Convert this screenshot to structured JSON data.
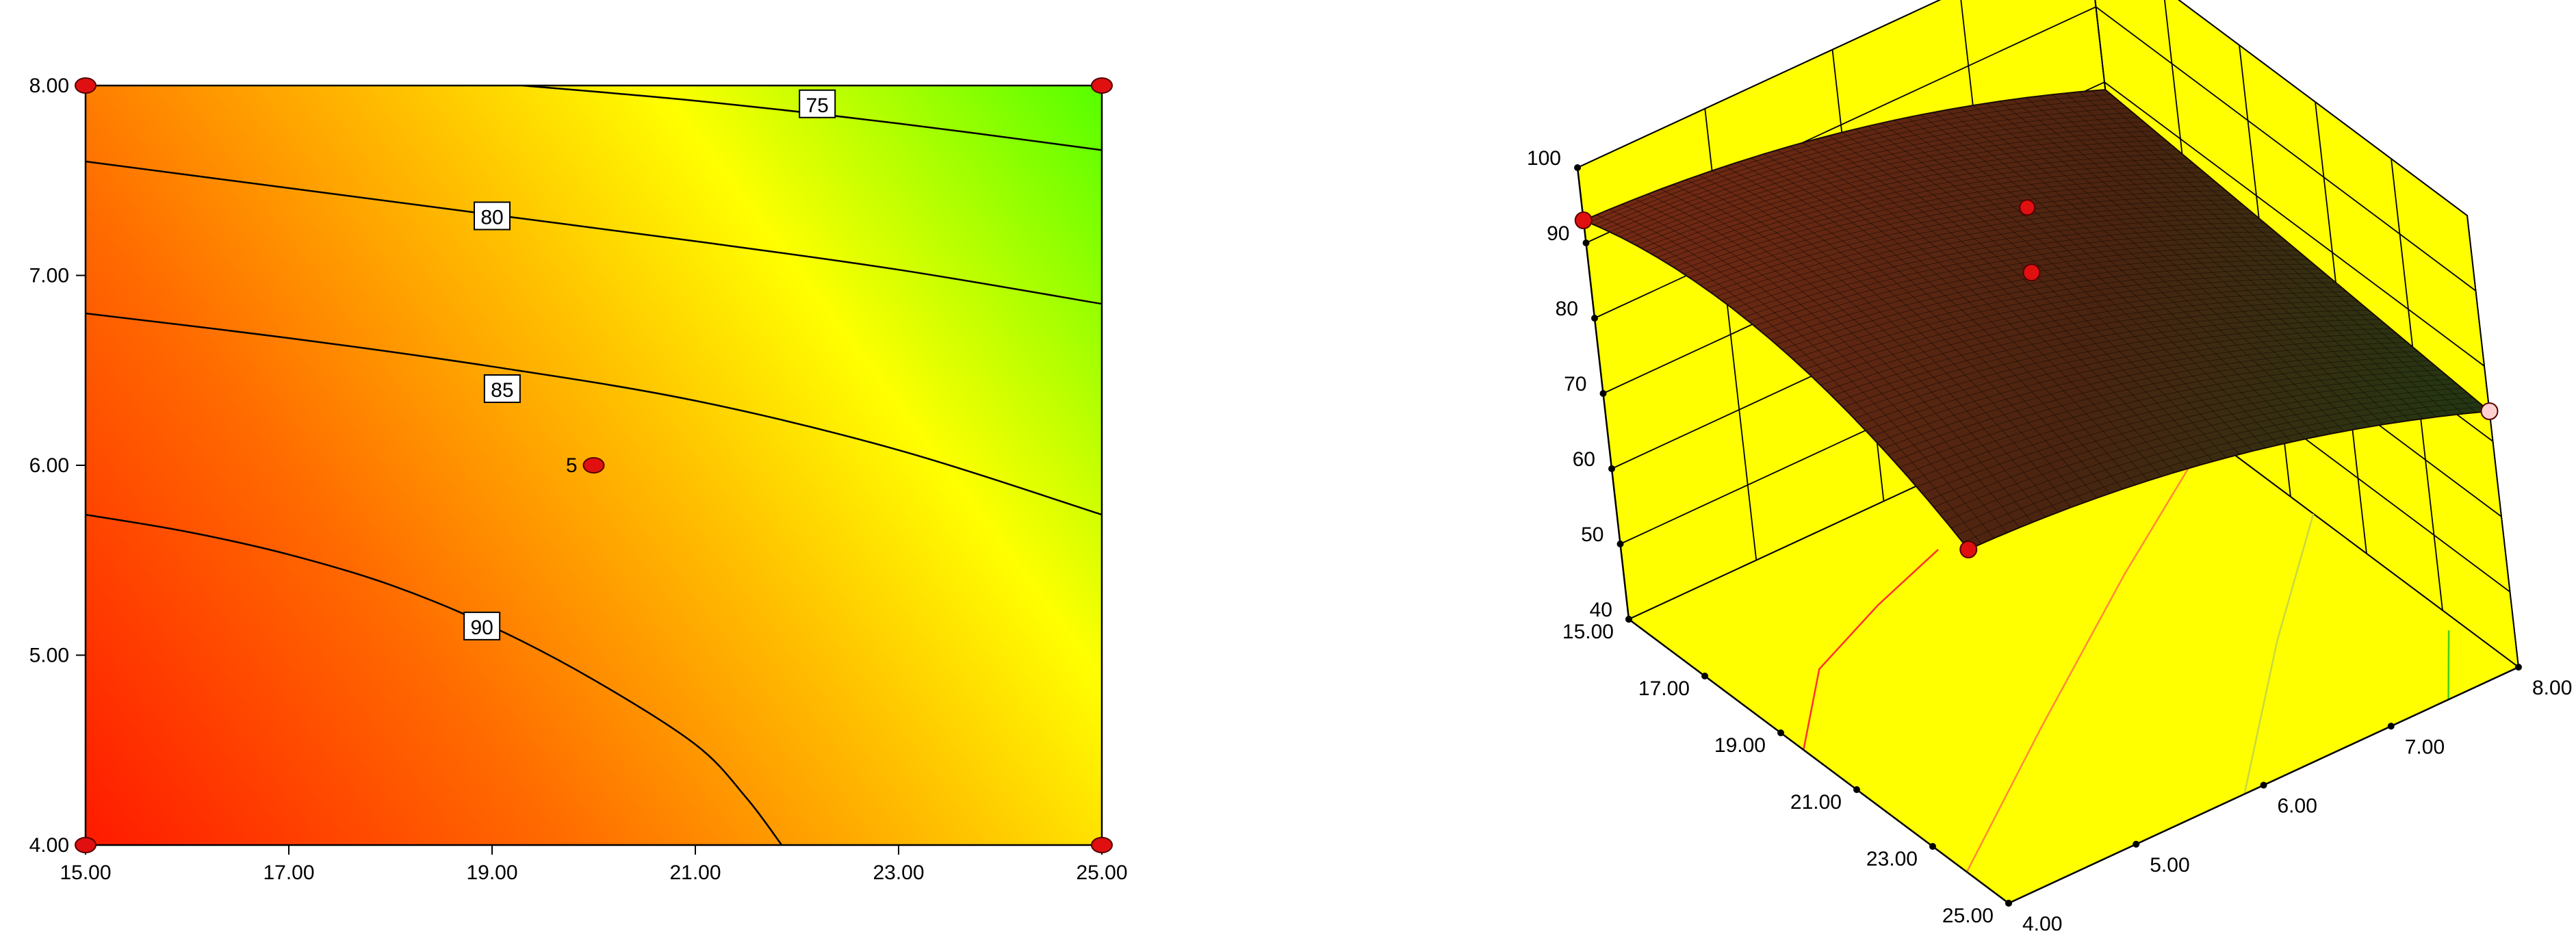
{
  "chart_data": [
    {
      "type": "contour",
      "xlabel": "",
      "ylabel": "",
      "xlim": [
        15.0,
        25.0
      ],
      "ylim": [
        4.0,
        8.0
      ],
      "x_ticks": [
        "15.00",
        "17.00",
        "19.00",
        "21.00",
        "23.00",
        "25.00"
      ],
      "y_ticks": [
        "4.00",
        "5.00",
        "6.00",
        "7.00",
        "8.00"
      ],
      "contours": [
        {
          "level": 75,
          "label": "75",
          "points": [
            [
              19.3,
              8.0
            ],
            [
              21.0,
              7.92
            ],
            [
              23.0,
              7.8
            ],
            [
              25.0,
              7.66
            ]
          ],
          "label_at": [
            22.2,
            7.9
          ]
        },
        {
          "level": 80,
          "label": "80",
          "points": [
            [
              15.0,
              7.6
            ],
            [
              17.0,
              7.46
            ],
            [
              19.0,
              7.32
            ],
            [
              21.0,
              7.18
            ],
            [
              23.0,
              7.03
            ],
            [
              25.0,
              6.85
            ]
          ],
          "label_at": [
            19.0,
            7.31
          ]
        },
        {
          "level": 85,
          "label": "85",
          "points": [
            [
              15.0,
              6.8
            ],
            [
              17.0,
              6.67
            ],
            [
              19.0,
              6.52
            ],
            [
              21.0,
              6.34
            ],
            [
              23.0,
              6.08
            ],
            [
              25.0,
              5.74
            ]
          ],
          "label_at": [
            19.1,
            6.4
          ]
        },
        {
          "level": 90,
          "label": "90",
          "points": [
            [
              15.0,
              5.74
            ],
            [
              16.0,
              5.65
            ],
            [
              17.0,
              5.53
            ],
            [
              18.0,
              5.37
            ],
            [
              19.0,
              5.15
            ],
            [
              20.0,
              4.87
            ],
            [
              21.0,
              4.53
            ],
            [
              21.5,
              4.25
            ],
            [
              21.85,
              4.0
            ]
          ],
          "label_at": [
            18.9,
            5.15
          ]
        }
      ],
      "design_points": [
        {
          "x": 15.0,
          "y": 4.0
        },
        {
          "x": 15.0,
          "y": 8.0
        },
        {
          "x": 25.0,
          "y": 4.0
        },
        {
          "x": 25.0,
          "y": 8.0
        },
        {
          "x": 20.0,
          "y": 6.0,
          "label": "5"
        }
      ],
      "colors": {
        "low": "#ff1a00",
        "mid": "#ffff00",
        "high": "#55ff00",
        "contour": "#000000",
        "point": "#e01010"
      }
    },
    {
      "type": "surface3d",
      "xlabel": "",
      "ylabel": "",
      "zlabel": "",
      "xlim": [
        15.0,
        25.0
      ],
      "ylim": [
        4.0,
        8.0
      ],
      "zlim": [
        40,
        100
      ],
      "x_ticks": [
        "15.00",
        "17.00",
        "19.00",
        "21.00",
        "23.00",
        "25.00"
      ],
      "y_ticks": [
        "4.00",
        "5.00",
        "6.00",
        "7.00",
        "8.00"
      ],
      "z_ticks": [
        "40",
        "50",
        "60",
        "70",
        "80",
        "90",
        "100"
      ],
      "corner_values": {
        "x15_y4": 93,
        "x15_y8": 79,
        "x25_y4": 87,
        "x25_y8": 74
      },
      "colors": {
        "walls": "#ffff00",
        "surface": "#6b2412",
        "surface_dark": "#1a1208",
        "point": "#e01010"
      }
    }
  ]
}
